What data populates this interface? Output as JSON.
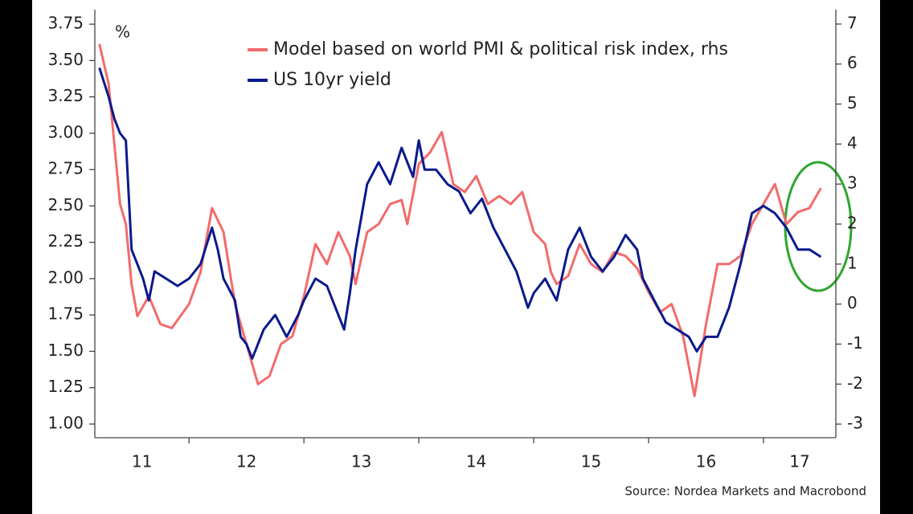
{
  "chart_data": {
    "type": "line",
    "ylabel": "%",
    "source": "Source: Nordea Markets and Macrobond",
    "xlim": [
      11.18,
      17.63
    ],
    "xticks": [
      {
        "value": 11,
        "label": "11"
      },
      {
        "value": 12,
        "label": "12"
      },
      {
        "value": 13,
        "label": "13"
      },
      {
        "value": 14,
        "label": "14"
      },
      {
        "value": 15,
        "label": "15"
      },
      {
        "value": 16,
        "label": "16"
      },
      {
        "value": 17,
        "label": "17"
      }
    ],
    "ylim": [
      0.906,
      3.85
    ],
    "yticks": [
      {
        "value": 1,
        "label": "1.00"
      },
      1.25,
      {
        "value": 1.5,
        "label": "1.50"
      },
      1.75,
      {
        "value": 2,
        "label": "2.00"
      },
      2.25,
      {
        "value": 2.5,
        "label": "2.50"
      },
      2.75,
      {
        "value": 3,
        "label": "3.00"
      },
      3.25,
      {
        "value": 3.5,
        "label": "3.50"
      },
      3.75
    ],
    "y2lim": [
      -3.34,
      7.36
    ],
    "y2ticks": [
      -3,
      -2,
      -1,
      0,
      1,
      2,
      3,
      4,
      5,
      6,
      7
    ],
    "grid": false,
    "series": [
      {
        "name": "Model based on world PMI & political risk index, rhs",
        "color": "#f26b6b",
        "axis": "y2",
        "x": [
          11.22,
          11.3,
          11.35,
          11.4,
          11.45,
          11.5,
          11.55,
          11.65,
          11.75,
          11.85,
          12.0,
          12.1,
          12.2,
          12.3,
          12.4,
          12.5,
          12.6,
          12.7,
          12.8,
          12.9,
          13.0,
          13.1,
          13.2,
          13.3,
          13.4,
          13.45,
          13.55,
          13.65,
          13.75,
          13.85,
          13.9,
          14.0,
          14.1,
          14.2,
          14.3,
          14.4,
          14.5,
          14.6,
          14.7,
          14.8,
          14.9,
          15.0,
          15.1,
          15.15,
          15.2,
          15.3,
          15.4,
          15.5,
          15.6,
          15.7,
          15.8,
          15.9,
          16.0,
          16.1,
          16.2,
          16.3,
          16.4,
          16.5,
          16.6,
          16.7,
          16.8,
          16.9,
          17.0,
          17.1,
          17.2,
          17.3,
          17.4,
          17.5
        ],
        "values": [
          6.5,
          5.5,
          4.0,
          2.5,
          2.0,
          0.5,
          -0.3,
          0.2,
          -0.5,
          -0.6,
          0,
          0.8,
          2.4,
          1.8,
          0,
          -1.0,
          -2.0,
          -1.8,
          -1.0,
          -0.8,
          0.2,
          1.5,
          1.0,
          1.8,
          1.2,
          0.5,
          1.8,
          2.0,
          2.5,
          2.6,
          2.0,
          3.5,
          3.8,
          4.3,
          3.0,
          2.8,
          3.2,
          2.5,
          2.7,
          2.5,
          2.8,
          1.8,
          1.5,
          0.8,
          0.5,
          0.7,
          1.5,
          1.0,
          0.8,
          1.3,
          1.2,
          0.9,
          0.3,
          -0.2,
          0.0,
          -0.8,
          -2.3,
          -0.5,
          1.0,
          1.0,
          1.2,
          2.0,
          2.5,
          3.0,
          2.0,
          2.3,
          2.4,
          2.9
        ]
      },
      {
        "name": "US 10yr yield",
        "color": "#0a1a8c",
        "x": [
          11.22,
          11.3,
          11.35,
          11.4,
          11.45,
          11.5,
          11.55,
          11.6,
          11.65,
          11.7,
          11.8,
          11.9,
          12.0,
          12.1,
          12.2,
          12.25,
          12.3,
          12.4,
          12.45,
          12.5,
          12.55,
          12.65,
          12.75,
          12.85,
          12.95,
          13.0,
          13.1,
          13.2,
          13.3,
          13.35,
          13.4,
          13.45,
          13.55,
          13.65,
          13.75,
          13.85,
          13.95,
          14.0,
          14.05,
          14.15,
          14.25,
          14.35,
          14.45,
          14.55,
          14.65,
          14.75,
          14.85,
          14.95,
          15.0,
          15.1,
          15.2,
          15.3,
          15.4,
          15.5,
          15.6,
          15.7,
          15.8,
          15.9,
          15.95,
          16.05,
          16.15,
          16.25,
          16.35,
          16.42,
          16.5,
          16.6,
          16.7,
          16.8,
          16.9,
          17.0,
          17.1,
          17.2,
          17.3,
          17.4,
          17.5
        ],
        "values": [
          3.45,
          3.25,
          3.1,
          3.0,
          2.95,
          2.2,
          2.1,
          2.0,
          1.85,
          2.05,
          2.0,
          1.95,
          2.0,
          2.1,
          2.35,
          2.2,
          2.0,
          1.85,
          1.6,
          1.55,
          1.45,
          1.65,
          1.75,
          1.6,
          1.75,
          1.85,
          2.0,
          1.95,
          1.75,
          1.65,
          1.9,
          2.2,
          2.65,
          2.8,
          2.65,
          2.9,
          2.7,
          2.95,
          2.75,
          2.75,
          2.65,
          2.6,
          2.45,
          2.55,
          2.35,
          2.2,
          2.05,
          1.8,
          1.9,
          2.0,
          1.85,
          2.2,
          2.35,
          2.15,
          2.05,
          2.15,
          2.3,
          2.2,
          2.0,
          1.85,
          1.7,
          1.65,
          1.6,
          1.5,
          1.6,
          1.6,
          1.8,
          2.1,
          2.45,
          2.5,
          2.45,
          2.35,
          2.2,
          2.2,
          2.15
        ]
      }
    ]
  }
}
